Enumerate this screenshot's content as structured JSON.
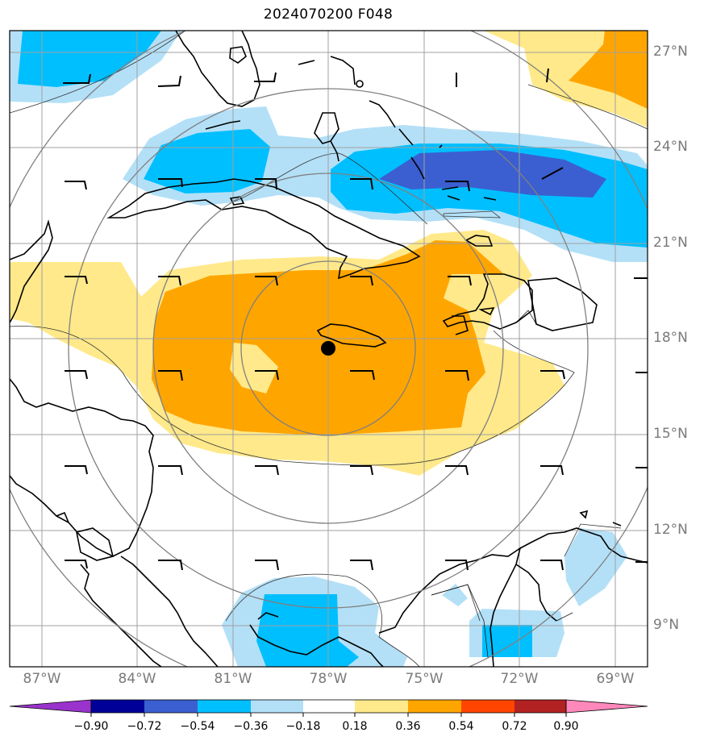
{
  "title": "2024070200 F048",
  "latitude_labels": [
    "27°N",
    "24°N",
    "21°N",
    "18°N",
    "15°N",
    "12°N",
    "9°N"
  ],
  "longitude_labels": [
    "87°W",
    "84°W",
    "81°W",
    "78°W",
    "75°W",
    "72°W",
    "69°W"
  ],
  "center_marker": {
    "lat": 17.6,
    "lon": -77.9
  },
  "colorbar": {
    "ticks": [
      "−0.90",
      "−0.72",
      "−0.54",
      "−0.36",
      "−0.18",
      "0.18",
      "0.36",
      "0.54",
      "0.72",
      "0.90"
    ],
    "colors": [
      "#9933cc",
      "#000099",
      "#3b5fd0",
      "#00bfff",
      "#b3e0f7",
      "#ffffff",
      "#ffe98a",
      "#ffa500",
      "#ff4500",
      "#b22222",
      "#ff88bb"
    ]
  },
  "colors": {
    "pos_low": "#ffe98a",
    "pos_mid": "#ffa500",
    "neg_low": "#b3e0f7",
    "neg_mid": "#00bfff",
    "neg_high": "#3b5fd0",
    "grid": "#a0a0a0",
    "rings": "#808080"
  }
}
